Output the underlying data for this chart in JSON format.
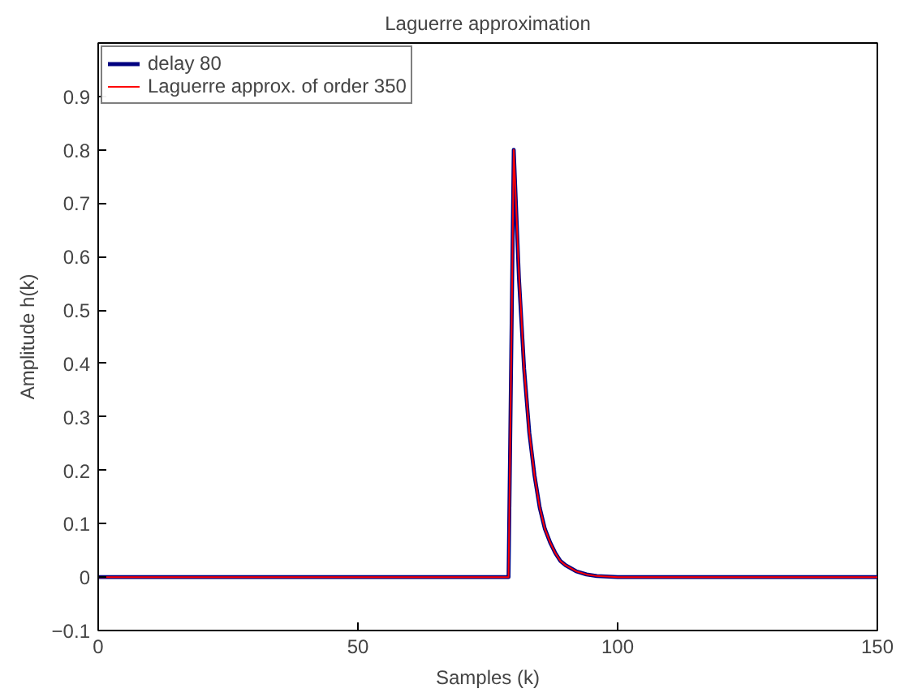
{
  "chart_data": {
    "type": "line",
    "title": "Laguerre approximation",
    "xlabel": "Samples (k)",
    "ylabel": "Amplitude h(k)",
    "xlim": [
      0,
      150
    ],
    "ylim": [
      -0.1,
      1.0
    ],
    "xticks": [
      0,
      50,
      100,
      150
    ],
    "yticks": [
      {
        "value": -0.1,
        "label": "−0.1"
      },
      0,
      0.1,
      0.2,
      0.3,
      0.4,
      0.5,
      0.6,
      0.7,
      0.8,
      0.9
    ],
    "legend": "top left",
    "grid": false,
    "series": [
      {
        "name": "delay 80",
        "color": "#000080",
        "x": [
          0,
          79,
          80,
          81,
          82,
          83,
          84,
          85,
          86,
          87,
          88,
          89,
          90,
          92,
          94,
          96,
          100,
          150
        ],
        "values": [
          0,
          0,
          0.8,
          0.56,
          0.39,
          0.27,
          0.19,
          0.13,
          0.09,
          0.065,
          0.045,
          0.03,
          0.022,
          0.011,
          0.005,
          0.002,
          0,
          0
        ]
      },
      {
        "name": "Laguerre approx. of order 350",
        "color": "#ff0000",
        "x": [
          0,
          79,
          80,
          81,
          82,
          83,
          84,
          85,
          86,
          87,
          88,
          89,
          90,
          92,
          94,
          96,
          100,
          150
        ],
        "values": [
          0,
          0,
          0.8,
          0.57,
          0.39,
          0.27,
          0.19,
          0.13,
          0.09,
          0.065,
          0.045,
          0.03,
          0.022,
          0.011,
          0.005,
          0.002,
          0,
          0
        ]
      }
    ]
  }
}
